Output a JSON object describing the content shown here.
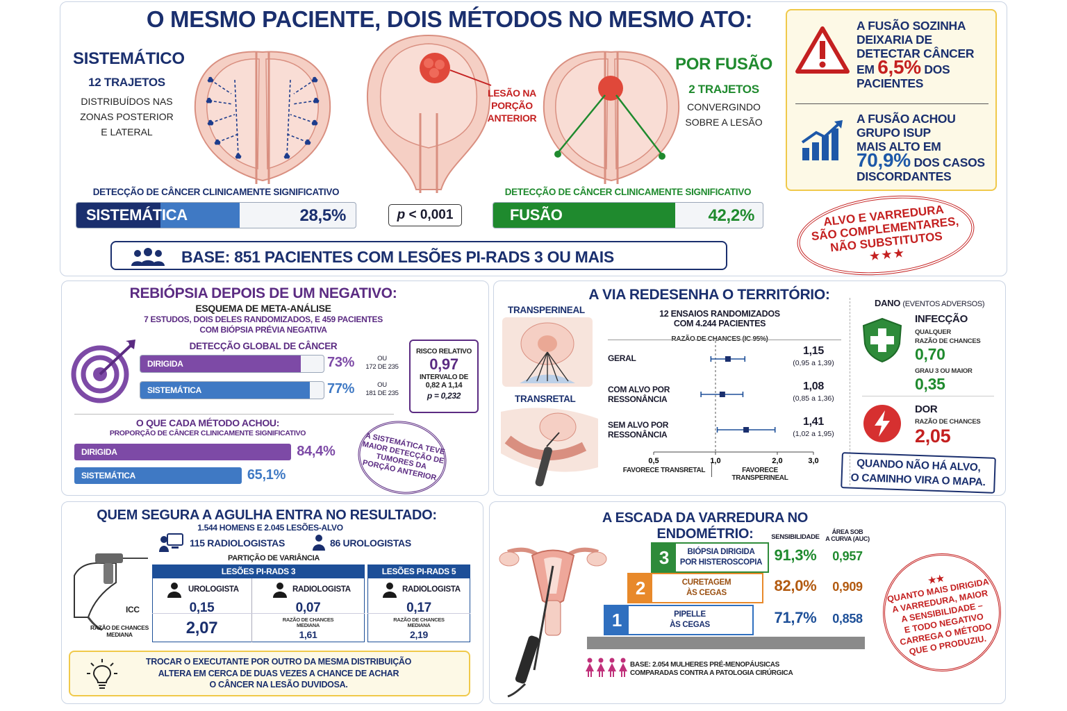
{
  "top": {
    "title": "O MESMO PACIENTE, DOIS MÉTODOS NO MESMO ATO:",
    "sist_title": "SISTEMÁTICO",
    "sist_trajetos": "12 TRAJETOS",
    "sist_desc": [
      "DISTRIBUÍDOS NAS",
      "ZONAS POSTERIOR",
      "E LATERAL"
    ],
    "lesion_label": [
      "LESÃO NA",
      "PORÇÃO",
      "ANTERIOR"
    ],
    "fusion_title": "POR FUSÃO",
    "fusion_trajetos": "2 TRAJETOS",
    "fusion_desc": [
      "CONVERGINDO",
      "SOBRE A LESÃO"
    ],
    "detect_label": "DETECÇÃO DE CÂNCER CLINICAMENTE SIGNIFICATIVO",
    "sist_bar": {
      "label": "SISTEMÁTICA",
      "value_text": "28,5%",
      "value": 28.5
    },
    "pvalue_p": "p",
    "pvalue_rest": " < 0,001",
    "fusion_bar": {
      "label": "FUSÃO",
      "value_text": "42,2%",
      "value": 42.2
    },
    "base_text": "BASE: 851 PACIENTES COM LESÕES PI-RADS 3 OU MAIS",
    "side1": {
      "lines": [
        "A FUSÃO SOZINHA",
        "DEIXARIA DE",
        "DETECTAR CÂNCER"
      ],
      "pre": "EM ",
      "big": "6,5%",
      "post": " DOS",
      "last": "PACIENTES"
    },
    "side2": {
      "lines": [
        "A FUSÃO ACHOU",
        "GRUPO ISUP",
        "MAIS ALTO EM"
      ],
      "big": "70,9%",
      "post": " DOS CASOS",
      "last": "DISCORDANTES"
    },
    "stamp": [
      "ALVO E VARREDURA",
      "SÃO COMPLEMENTARES,",
      "NÃO SUBSTITUTOS"
    ],
    "stamp_stars": "★★★"
  },
  "rebiopsy": {
    "title": "REBIÓPSIA DEPOIS DE UM NEGATIVO:",
    "subtitle": "ESQUEMA DE META-ANÁLISE",
    "line1": "7 ESTUDOS, DOIS DELES RANDOMIZADOS, E 459 PACIENTES",
    "line2": "COM BIÓPSIA PRÉVIA NEGATIVA",
    "global_label": "DETECÇÃO GLOBAL DE CÂNCER",
    "bars": [
      {
        "label": "DIRIGIDA",
        "value": 73,
        "value_text": "73%",
        "ou": "OU",
        "detail": "172 DE 235",
        "color": "#7d4aa6"
      },
      {
        "label": "SISTEMÁTICA",
        "value": 77,
        "value_text": "77%",
        "ou": "OU",
        "detail": "181 DE 235",
        "color": "#3f79c4"
      }
    ],
    "rr": {
      "label": "RISCO RELATIVO",
      "value": "0,97",
      "ci_label": "INTERVALO DE",
      "ci": "0,82 A 1,14",
      "p": "p = 0,232"
    },
    "found_title": "O QUE CADA MÉTODO ACHOU:",
    "found_sub": "PROPORÇÃO DE CÂNCER CLINICAMENTE SIGNIFICATIVO",
    "found_bars": [
      {
        "label": "DIRIGIDA",
        "value": 84.4,
        "value_text": "84,4%",
        "color": "#7d4aa6"
      },
      {
        "label": "SISTEMÁTICA",
        "value": 65.1,
        "value_text": "65,1%",
        "color": "#3f79c4"
      }
    ],
    "stamp": [
      "A SISTEMÁTICA TEVE",
      "MAIOR DETECÇÃO DE",
      "TUMORES DA",
      "PORÇÃO ANTERIOR"
    ]
  },
  "route": {
    "title": "A VIA REDESENHA O TERRITÓRIO:",
    "transperineal": "TRANSPERINEAL",
    "transretal": "TRANSRETAL",
    "trials1": "12 ENSAIOS RANDOMIZADOS",
    "trials2": "COM 4.244 PACIENTES",
    "or_label": "RAZÃO DE CHANCES (IC 95%)",
    "rows": [
      {
        "label": [
          "GERAL"
        ],
        "or": 1.15,
        "lo": 0.95,
        "hi": 1.39,
        "or_text": "1,15",
        "ci_text": "(0,95 a 1,39)"
      },
      {
        "label": [
          "COM ALVO POR",
          "RESSONÂNCIA"
        ],
        "or": 1.08,
        "lo": 0.85,
        "hi": 1.36,
        "or_text": "1,08",
        "ci_text": "(0,85 a 1,36)"
      },
      {
        "label": [
          "SEM ALVO POR",
          "RESSONÂNCIA"
        ],
        "or": 1.41,
        "lo": 1.02,
        "hi": 1.95,
        "or_text": "1,41",
        "ci_text": "(1,02 a 1,95)"
      }
    ],
    "ticks": [
      "0,5",
      "1,0",
      "2,0",
      "3,0"
    ],
    "favor_left": "FAVORECE TRANSRETAL",
    "favor_right": "FAVORECE TRANSPERINEAL",
    "dano": "DANO",
    "dano_sub": "(EVENTOS ADVERSOS)",
    "infec": "INFECÇÃO",
    "infec_sub1": "QUALQUER",
    "infec_sub2": "RAZÃO DE CHANCES",
    "infec_val": "0,70",
    "infec_grade": "GRAU 3 OU MAIOR",
    "infec_val2": "0,35",
    "dor": "DOR",
    "dor_sub": "RAZÃO DE CHANCES",
    "dor_val": "2,05",
    "banner": [
      "QUANDO NÃO HÁ ALVO,",
      "O CAMINHO VIRA O MAPA."
    ]
  },
  "needle": {
    "title": "QUEM SEGURA A AGULHA ENTRA NO RESULTADO:",
    "sub": "1.544 HOMENS E 2.045 LESÕES-ALVO",
    "radiologists": "115 RADIOLOGISTAS",
    "urologists": "86 UROLOGISTAS",
    "partition": "PARTIÇÃO DE VARIÂNCIA",
    "pirads3": "LESÕES PI-RADS 3",
    "pirads5": "LESÕES PI-RADS 5",
    "uro": "UROLOGISTA",
    "radio": "RADIOLOGISTA",
    "icc": "ICC",
    "mor_left": [
      "RAZÃO DE CHANCES",
      "MEDIANA"
    ],
    "c1_icc": "0,15",
    "c1_mor": "2,07",
    "c2_icc": "0,07",
    "c2_mor": "1,61",
    "c3_icc": "0,17",
    "c3_mor": "2,19",
    "mor_small": [
      "RAZÃO DE CHANCES",
      "MEDIANA"
    ],
    "tip": [
      "TROCAR O EXECUTANTE POR OUTRO DA MESMA DISTRIBUIÇÃO",
      "ALTERA EM CERCA DE DUAS VEZES A CHANCE DE ACHAR",
      "O CÂNCER NA LESÃO DUVIDOSA."
    ]
  },
  "endo": {
    "title": "A ESCADA DA VARREDURA NO ENDOMÉTRIO:",
    "col_sens": "SENSIBILIDADE",
    "col_auc": [
      "ÁREA SOB",
      "A CURVA (AUC)"
    ],
    "steps": [
      {
        "num": "3",
        "label": [
          "BIÓPSIA DIRIGIDA",
          "POR HISTEROSCOPIA"
        ],
        "sens": "91,3%",
        "auc": "0,957",
        "color": "#2e8b3a"
      },
      {
        "num": "2",
        "label": [
          "CURETAGEM",
          "ÀS CEGAS"
        ],
        "sens": "82,0%",
        "auc": "0,909",
        "color": "#e8892a"
      },
      {
        "num": "1",
        "label": [
          "PIPELLE",
          "ÀS CEGAS"
        ],
        "sens": "71,7%",
        "auc": "0,858",
        "color": "#2f6fbf"
      }
    ],
    "base": [
      "BASE: 2.054 MULHERES PRÉ-MENOPÁUSICAS",
      "COMPARADAS CONTRA A PATOLOGIA CIRÚRGICA"
    ],
    "stamp": [
      "QUANTO MAIS DIRIGIDA",
      "A VARREDURA, MAIOR",
      "A SENSIBILIDADE –",
      "E TODO NEGATIVO",
      "CARREGA O MÉTODO",
      "QUE O PRODUZIU."
    ],
    "stamp_stars": "★★"
  }
}
